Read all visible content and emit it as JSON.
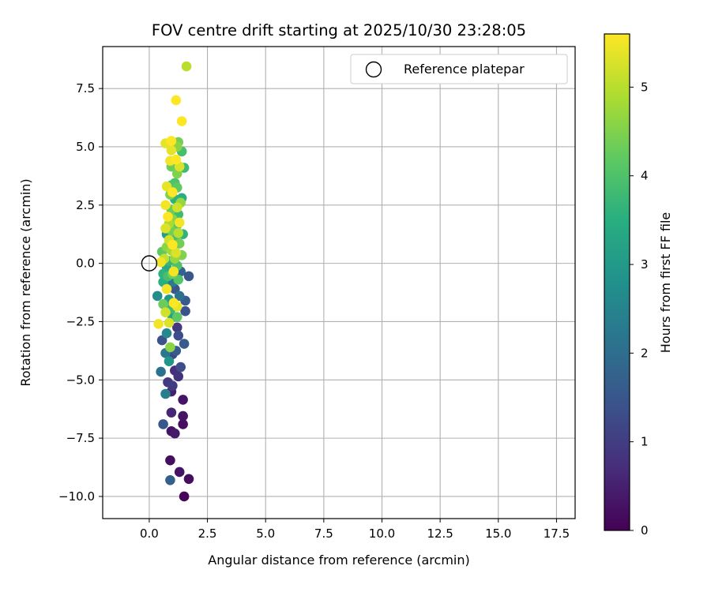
{
  "chart_data": {
    "type": "scatter",
    "title": "FOV centre drift starting at 2025/10/30 23:28:05",
    "xlabel": "Angular distance from reference (arcmin)",
    "ylabel": "Rotation from reference (arcmin)",
    "xlim": [
      -2,
      18.3
    ],
    "ylim": [
      -10.95,
      9.3
    ],
    "xticks": [
      0.0,
      2.5,
      5.0,
      7.5,
      10.0,
      12.5,
      15.0,
      17.5
    ],
    "xtick_labels": [
      "0.0",
      "2.5",
      "5.0",
      "7.5",
      "10.0",
      "12.5",
      "15.0",
      "17.5"
    ],
    "yticks": [
      7.5,
      5.0,
      2.5,
      0.0,
      -2.5,
      -5.0,
      -7.5,
      -10.0
    ],
    "ytick_labels": [
      "7.5",
      "5.0",
      "2.5",
      "0.0",
      "−2.5",
      "−5.0",
      "−7.5",
      "−10.0"
    ],
    "grid": true,
    "legend": {
      "position": "top-right",
      "entries": [
        "Reference platepar"
      ]
    },
    "reference_point": {
      "x": 0.0,
      "y": 0.0,
      "label": "Reference platepar",
      "marker": "open-circle"
    },
    "colorbar": {
      "label": "Hours from first FF file",
      "range": [
        0,
        5.6
      ],
      "ticks": [
        0,
        1,
        2,
        3,
        4,
        5
      ],
      "tick_labels": [
        "0",
        "1",
        "2",
        "3",
        "4",
        "5"
      ],
      "colormap": "viridis"
    },
    "series": [
      {
        "name": "FOV centre",
        "points": [
          {
            "x": 1.5,
            "y": -10.0,
            "c": 0.1
          },
          {
            "x": 0.9,
            "y": -9.3,
            "c": 1.7
          },
          {
            "x": 1.7,
            "y": -9.25,
            "c": 0.2
          },
          {
            "x": 1.3,
            "y": -8.95,
            "c": 0.3
          },
          {
            "x": 0.9,
            "y": -8.45,
            "c": 0.2
          },
          {
            "x": 1.1,
            "y": -7.3,
            "c": 0.4
          },
          {
            "x": 0.95,
            "y": -7.2,
            "c": 0.3
          },
          {
            "x": 0.6,
            "y": -6.9,
            "c": 1.5
          },
          {
            "x": 1.45,
            "y": -6.9,
            "c": 0.2
          },
          {
            "x": 1.45,
            "y": -6.55,
            "c": 0.3
          },
          {
            "x": 0.95,
            "y": -6.4,
            "c": 0.6
          },
          {
            "x": 1.45,
            "y": -5.85,
            "c": 0.3
          },
          {
            "x": 0.7,
            "y": -5.6,
            "c": 2.4
          },
          {
            "x": 0.95,
            "y": -5.5,
            "c": 0.5
          },
          {
            "x": 0.8,
            "y": -5.1,
            "c": 0.9
          },
          {
            "x": 1.0,
            "y": -5.25,
            "c": 1.0
          },
          {
            "x": 1.25,
            "y": -4.85,
            "c": 0.8
          },
          {
            "x": 0.5,
            "y": -4.65,
            "c": 2.1
          },
          {
            "x": 1.35,
            "y": -4.45,
            "c": 1.3
          },
          {
            "x": 1.1,
            "y": -4.6,
            "c": 0.7
          },
          {
            "x": 0.85,
            "y": -4.2,
            "c": 2.9
          },
          {
            "x": 1.0,
            "y": -3.9,
            "c": 1.2
          },
          {
            "x": 0.7,
            "y": -3.85,
            "c": 2.2
          },
          {
            "x": 1.15,
            "y": -3.75,
            "c": 1.6
          },
          {
            "x": 0.9,
            "y": -3.6,
            "c": 4.6
          },
          {
            "x": 1.5,
            "y": -3.45,
            "c": 1.6
          },
          {
            "x": 0.55,
            "y": -3.3,
            "c": 1.4
          },
          {
            "x": 1.25,
            "y": -3.1,
            "c": 1.3
          },
          {
            "x": 0.75,
            "y": -3.0,
            "c": 2.6
          },
          {
            "x": 1.2,
            "y": -2.75,
            "c": 0.9
          },
          {
            "x": 0.4,
            "y": -2.6,
            "c": 5.5
          },
          {
            "x": 0.85,
            "y": -2.55,
            "c": 5.3
          },
          {
            "x": 1.0,
            "y": -2.3,
            "c": 3.2
          },
          {
            "x": 1.2,
            "y": -2.3,
            "c": 4.2
          },
          {
            "x": 0.7,
            "y": -2.1,
            "c": 5.2
          },
          {
            "x": 1.55,
            "y": -2.05,
            "c": 1.4
          },
          {
            "x": 0.95,
            "y": -1.95,
            "c": 3.8
          },
          {
            "x": 1.2,
            "y": -1.85,
            "c": 5.4
          },
          {
            "x": 0.6,
            "y": -1.75,
            "c": 4.3
          },
          {
            "x": 1.05,
            "y": -1.7,
            "c": 5.6
          },
          {
            "x": 1.55,
            "y": -1.6,
            "c": 1.6
          },
          {
            "x": 0.85,
            "y": -1.55,
            "c": 3.0
          },
          {
            "x": 1.3,
            "y": -1.4,
            "c": 2.1
          },
          {
            "x": 0.35,
            "y": -1.4,
            "c": 2.7
          },
          {
            "x": 0.75,
            "y": -1.1,
            "c": 5.5
          },
          {
            "x": 1.1,
            "y": -1.1,
            "c": 1.5
          },
          {
            "x": 0.6,
            "y": -0.8,
            "c": 3.5
          },
          {
            "x": 1.0,
            "y": -0.8,
            "c": 2.3
          },
          {
            "x": 1.25,
            "y": -0.7,
            "c": 4.1
          },
          {
            "x": 0.8,
            "y": -0.55,
            "c": 3.9
          },
          {
            "x": 1.7,
            "y": -0.55,
            "c": 1.5
          },
          {
            "x": 0.6,
            "y": -0.45,
            "c": 3.6
          },
          {
            "x": 1.0,
            "y": -0.45,
            "c": 4.4
          },
          {
            "x": 1.35,
            "y": -0.35,
            "c": 1.8
          },
          {
            "x": 1.05,
            "y": -0.35,
            "c": 5.5
          },
          {
            "x": 0.75,
            "y": -0.15,
            "c": 3.4
          },
          {
            "x": 1.2,
            "y": -0.1,
            "c": 4.0
          },
          {
            "x": 0.5,
            "y": 0.05,
            "c": 5.5
          },
          {
            "x": 0.85,
            "y": 0.1,
            "c": 3.7
          },
          {
            "x": 0.65,
            "y": 0.2,
            "c": 5.1
          },
          {
            "x": 1.1,
            "y": 0.2,
            "c": 4.7
          },
          {
            "x": 1.4,
            "y": 0.35,
            "c": 4.5
          },
          {
            "x": 0.55,
            "y": 0.5,
            "c": 4.2
          },
          {
            "x": 0.95,
            "y": 0.55,
            "c": 4.8
          },
          {
            "x": 1.15,
            "y": 0.45,
            "c": 5.3
          },
          {
            "x": 0.75,
            "y": 0.7,
            "c": 4.6
          },
          {
            "x": 1.0,
            "y": 0.8,
            "c": 5.6
          },
          {
            "x": 1.3,
            "y": 0.85,
            "c": 4.4
          },
          {
            "x": 0.85,
            "y": 1.0,
            "c": 5.2
          },
          {
            "x": 1.1,
            "y": 1.05,
            "c": 3.9
          },
          {
            "x": 0.75,
            "y": 1.25,
            "c": 3.1
          },
          {
            "x": 1.45,
            "y": 1.25,
            "c": 3.6
          },
          {
            "x": 1.25,
            "y": 1.3,
            "c": 5.0
          },
          {
            "x": 0.95,
            "y": 1.4,
            "c": 4.4
          },
          {
            "x": 0.7,
            "y": 1.5,
            "c": 5.3
          },
          {
            "x": 1.2,
            "y": 1.65,
            "c": 4.1
          },
          {
            "x": 0.85,
            "y": 1.7,
            "c": 4.9
          },
          {
            "x": 1.3,
            "y": 1.75,
            "c": 5.5
          },
          {
            "x": 1.0,
            "y": 1.9,
            "c": 4.6
          },
          {
            "x": 0.8,
            "y": 2.0,
            "c": 5.6
          },
          {
            "x": 1.25,
            "y": 2.1,
            "c": 3.8
          },
          {
            "x": 0.95,
            "y": 2.3,
            "c": 4.3
          },
          {
            "x": 1.2,
            "y": 2.4,
            "c": 5.2
          },
          {
            "x": 0.7,
            "y": 2.5,
            "c": 5.5
          },
          {
            "x": 1.35,
            "y": 2.6,
            "c": 4.7
          },
          {
            "x": 1.1,
            "y": 2.75,
            "c": 3.6
          },
          {
            "x": 1.4,
            "y": 2.8,
            "c": 3.5
          },
          {
            "x": 0.9,
            "y": 2.95,
            "c": 4.5
          },
          {
            "x": 1.0,
            "y": 3.05,
            "c": 5.6
          },
          {
            "x": 1.2,
            "y": 3.25,
            "c": 4.2
          },
          {
            "x": 0.75,
            "y": 3.3,
            "c": 5.4
          },
          {
            "x": 0.95,
            "y": 3.35,
            "c": 3.9
          },
          {
            "x": 1.1,
            "y": 3.45,
            "c": 4.0
          },
          {
            "x": 1.2,
            "y": 3.85,
            "c": 4.5
          },
          {
            "x": 1.5,
            "y": 4.1,
            "c": 3.8
          },
          {
            "x": 0.95,
            "y": 4.15,
            "c": 4.3
          },
          {
            "x": 1.3,
            "y": 4.15,
            "c": 5.3
          },
          {
            "x": 0.9,
            "y": 4.4,
            "c": 5.5
          },
          {
            "x": 1.15,
            "y": 4.45,
            "c": 5.6
          },
          {
            "x": 1.4,
            "y": 4.8,
            "c": 3.9
          },
          {
            "x": 0.95,
            "y": 4.85,
            "c": 5.4
          },
          {
            "x": 1.2,
            "y": 5.0,
            "c": 4.6
          },
          {
            "x": 0.7,
            "y": 5.15,
            "c": 5.4
          },
          {
            "x": 0.95,
            "y": 5.25,
            "c": 5.6
          },
          {
            "x": 1.25,
            "y": 5.2,
            "c": 4.4
          },
          {
            "x": 1.4,
            "y": 6.1,
            "c": 5.6
          },
          {
            "x": 1.15,
            "y": 7.0,
            "c": 5.6
          },
          {
            "x": 1.6,
            "y": 8.45,
            "c": 5.0
          }
        ]
      }
    ]
  }
}
